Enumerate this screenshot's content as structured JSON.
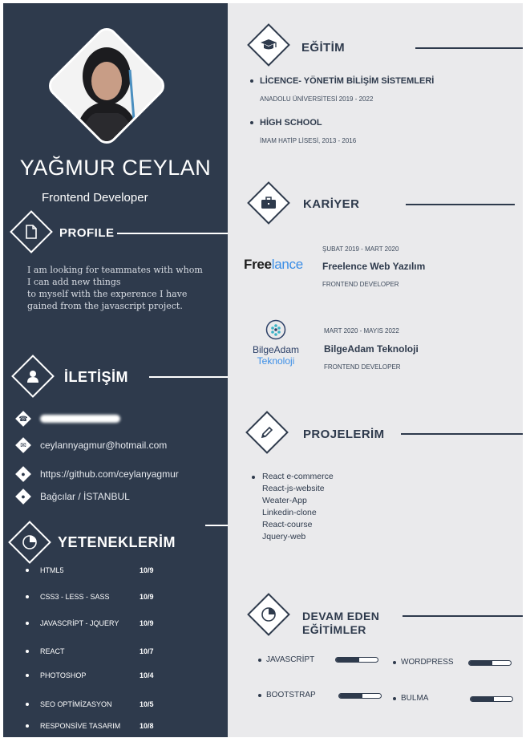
{
  "profile": {
    "name": "YAĞMUR CEYLAN",
    "role": "Frontend Developer"
  },
  "sections": {
    "profile": "PROFILE",
    "contact": "İLETİŞİM",
    "skills": "YETENEKLERİM",
    "education": "EĞİTİM",
    "career": "KARİYER",
    "projects": "PROJELERİM",
    "ongoing_line1": "DEVAM EDEN",
    "ongoing_line2": "EĞİTİMLER"
  },
  "about": [
    "I am looking for teammates with whom",
    "I can add new things",
    "to myself with the experence I have",
    "gained from the javascript project."
  ],
  "contact": {
    "email": "ceylannyagmur@hotmail.com",
    "github": "https://github.com/ceylanyagmur",
    "location": "Bağcılar / İSTANBUL"
  },
  "skills": [
    {
      "name": "HTML5",
      "score": "10/9"
    },
    {
      "name": "CSS3 - LESS - SASS",
      "score": "10/9"
    },
    {
      "name": "JAVASCRİPT - JQUERY",
      "score": "10/9"
    },
    {
      "name": "REACT",
      "score": "10/7"
    },
    {
      "name": "PHOTOSHOP",
      "score": "10/4"
    },
    {
      "name": "SEO OPTİMİZASYON",
      "score": "10/5"
    },
    {
      "name": "RESPONSİVE TASARIM",
      "score": "10/8"
    }
  ],
  "education": [
    {
      "title": "LİCENCE- YÖNETİM BİLİŞİM SİSTEMLERİ",
      "detail": "ANADOLU ÜNİVERSİTESİ 2019 - 2022"
    },
    {
      "title": "HİGH SCHOOL",
      "detail": "İMAM HATİP LİSESİ, 2013 - 2016"
    }
  ],
  "career": [
    {
      "logo_a": "Free",
      "logo_b": "lance",
      "date": "ŞUBAT 2019 - MART 2020",
      "company": "Freelence Web Yazılım",
      "role": "FRONTEND DEVELOPER"
    },
    {
      "logo_a": "BilgeAdam",
      "logo_b": "Teknoloji",
      "date": "MART 2020 - MAYIS 2022",
      "company": "BilgeAdam Teknoloji",
      "role": "FRONTEND DEVELOPER"
    }
  ],
  "projects": [
    "React e-commerce",
    "React-js-website",
    "Weater-App",
    "Linkedin-clone",
    "React-course",
    "Jquery-web"
  ],
  "ongoing": [
    {
      "name": "JAVASCRİPT",
      "level": 0.55
    },
    {
      "name": "WORDPRESS",
      "level": 0.55
    },
    {
      "name": "BOOTSTRAP",
      "level": 0.55
    },
    {
      "name": "BULMA",
      "level": 0.55
    }
  ],
  "colors": {
    "sidebar": "#2e3a4c",
    "accent_blue": "#3b8ee6",
    "background": "#eaeaec"
  }
}
